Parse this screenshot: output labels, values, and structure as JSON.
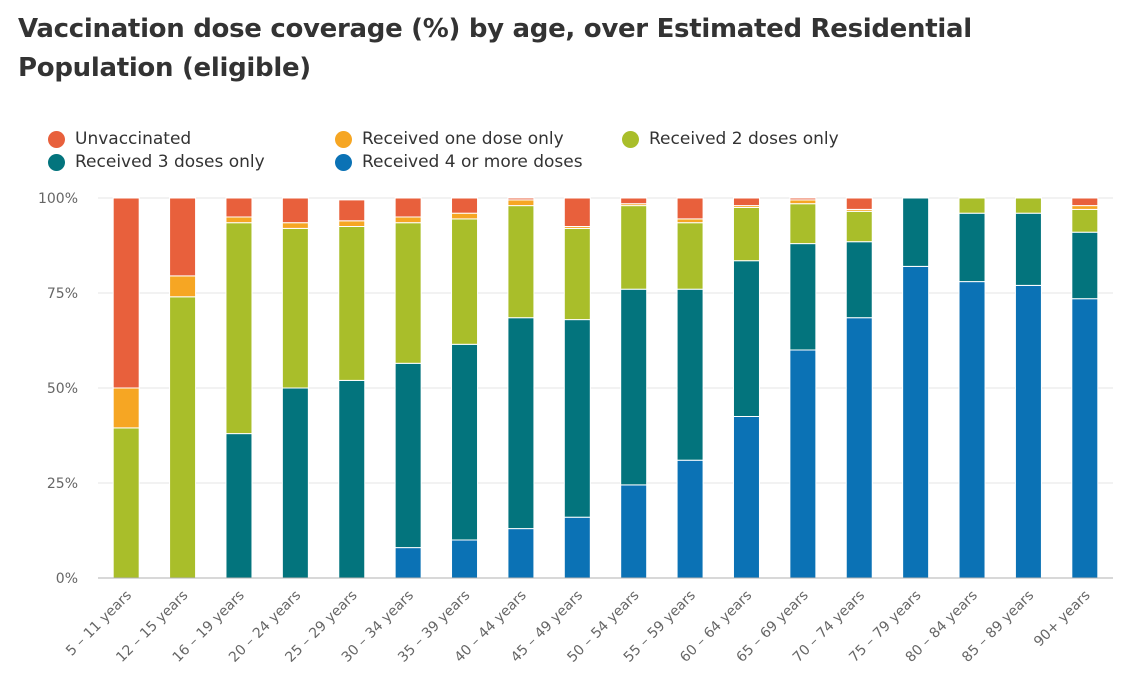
{
  "chart_data": {
    "type": "bar",
    "stacked": true,
    "title": "Vaccination dose coverage (%) by age, over Estimated Residential Population (eligible)",
    "categories": [
      "5 – 11 years",
      "12 – 15 years",
      "16 – 19 years",
      "20 – 24 years",
      "25 – 29 years",
      "30 – 34 years",
      "35 – 39 years",
      "40 – 44 years",
      "45 – 49 years",
      "50 – 54 years",
      "55 – 59 years",
      "60 – 64 years",
      "65 – 69 years",
      "70 – 74 years",
      "75 – 79 years",
      "80 – 84 years",
      "85 – 89 years",
      "90+ years"
    ],
    "series": [
      {
        "name": "Received 4 or more doses",
        "color": "#0b72b5",
        "values": [
          0,
          0,
          0,
          0,
          0,
          8,
          10,
          13,
          16,
          24.5,
          31,
          42.5,
          60,
          68.5,
          82,
          78,
          77,
          73.5
        ]
      },
      {
        "name": "Received 3 doses only",
        "color": "#03747d",
        "values": [
          0,
          0,
          38,
          50,
          52,
          48.5,
          51.5,
          55.5,
          52,
          51.5,
          45,
          41,
          28,
          20,
          18,
          18,
          19,
          17.5
        ]
      },
      {
        "name": "Received 2 doses only",
        "color": "#a9be2a",
        "values": [
          39.5,
          74,
          55.5,
          42,
          40.5,
          37,
          33,
          29.5,
          24,
          22,
          17.5,
          14,
          10.5,
          8,
          0,
          4,
          4,
          6
        ]
      },
      {
        "name": "Received one dose only",
        "color": "#f6a623",
        "values": [
          10.5,
          5.5,
          1.5,
          1.5,
          1.5,
          1.5,
          1.5,
          1.5,
          0.5,
          0.5,
          1,
          0.5,
          1,
          0.5,
          0,
          0,
          0,
          1
        ]
      },
      {
        "name": "Unvaccinated",
        "color": "#e8603c",
        "values": [
          50,
          20.5,
          5,
          6.5,
          5.5,
          5,
          4,
          0.5,
          7.5,
          1.5,
          5.5,
          2,
          0.5,
          3,
          0,
          0,
          0,
          2
        ]
      }
    ],
    "legend": [
      {
        "name": "Unvaccinated",
        "color": "#e8603c"
      },
      {
        "name": "Received one dose only",
        "color": "#f6a623"
      },
      {
        "name": "Received 2 doses only",
        "color": "#a9be2a"
      },
      {
        "name": "Received 3 doses only",
        "color": "#03747d"
      },
      {
        "name": "Received 4 or more doses",
        "color": "#0b72b5"
      }
    ],
    "legend_position": "top-left",
    "y_ticks": [
      "0%",
      "25%",
      "50%",
      "75%",
      "100%"
    ],
    "ylim": [
      0,
      100
    ],
    "grid": true,
    "xlabel": "",
    "ylabel": ""
  }
}
